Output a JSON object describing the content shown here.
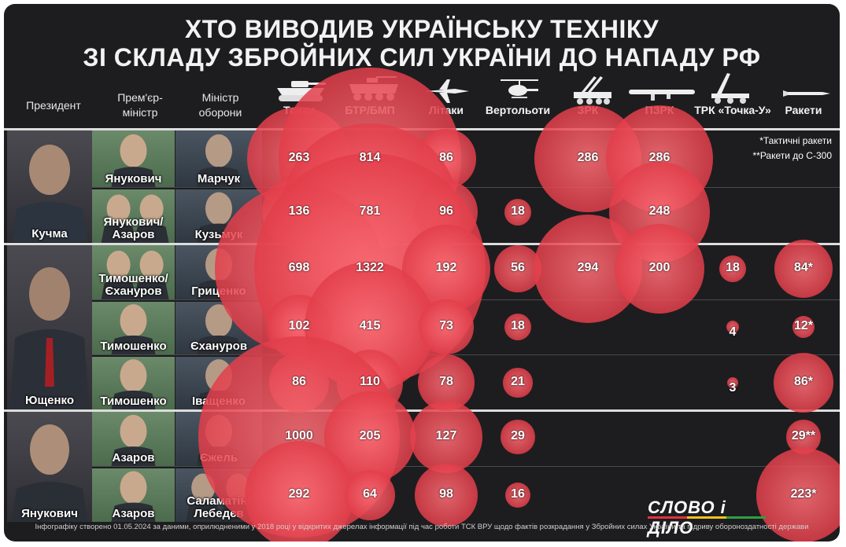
{
  "title_line1": "ХТО ВИВОДИВ УКРАЇНСЬКУ ТЕХНІКУ",
  "title_line2": "ЗІ СКЛАДУ ЗБРОЙНИХ СИЛ УКРАЇНИ ДО НАПАДУ РФ",
  "headers": {
    "president": "Президент",
    "pm_line1": "Прем'єр-",
    "pm_line2": "міністр",
    "minister_line1": "Міністр",
    "minister_line2": "оборони"
  },
  "notes": {
    "line1": "*Тактичні ракети",
    "line2": "**Ракети до С-300"
  },
  "footer": "Інфографіку створено 01.05.2024 за даними, оприлюдненими у 2018 році у відкритих джерелах інформації під час роботи ТСК ВРУ щодо фактів розкрадання у Збройних силах України та підриву обороноздатності держави",
  "logo": "СЛОВО і ДІЛО",
  "accent_color": "#e23e4a",
  "icons": [
    "tank-icon",
    "apc-icon",
    "jet-icon",
    "helicopter-icon",
    "sam-icon",
    "manpads-icon",
    "tochka-icon",
    "missile-icon"
  ],
  "presidents": [
    {
      "name": "Кучма"
    },
    {
      "name": "Ющенко"
    },
    {
      "name": "Янукович"
    }
  ],
  "rows": [
    {
      "pm_l1": "Янукович",
      "pm_l2": "",
      "min_l1": "Марчук",
      "min_l2": ""
    },
    {
      "pm_l1": "Янукович/",
      "pm_l2": "Азаров",
      "min_l1": "Кузьмук",
      "min_l2": ""
    },
    {
      "pm_l1": "Тимошенко/",
      "pm_l2": "Єхануров",
      "min_l1": "Гриценко",
      "min_l2": ""
    },
    {
      "pm_l1": "Тимошенко",
      "pm_l2": "",
      "min_l1": "Єхануров",
      "min_l2": ""
    },
    {
      "pm_l1": "Тимошенко",
      "pm_l2": "",
      "min_l1": "Іващенко",
      "min_l2": ""
    },
    {
      "pm_l1": "Азаров",
      "pm_l2": "",
      "min_l1": "Єжель",
      "min_l2": ""
    },
    {
      "pm_l1": "Азаров",
      "pm_l2": "",
      "min_l1": "Саламатін/",
      "min_l2": "Лебедєв"
    }
  ],
  "chart_data": {
    "type": "table",
    "title": "ХТО ВИВОДИВ УКРАЇНСЬКУ ТЕХНІКУ ЗІ СКЛАДУ ЗБРОЙНИХ СИЛ УКРАЇНИ ДО НАПАДУ РФ",
    "categories": [
      "Танки",
      "БТР/БМП",
      "Літаки",
      "Вертольоти",
      "ЗРК",
      "ПЗРК",
      "ТРК «Точка-У»",
      "Ракети"
    ],
    "rows": [
      {
        "president": "Кучма",
        "pm": "Янукович",
        "minister": "Марчук",
        "values": [
          263,
          814,
          86,
          null,
          286,
          286,
          null,
          null
        ],
        "labels": [
          "263",
          "814",
          "86",
          "",
          "286",
          "286",
          "",
          ""
        ]
      },
      {
        "president": "Кучма",
        "pm": "Янукович/Азаров",
        "minister": "Кузьмук",
        "values": [
          136,
          781,
          96,
          18,
          null,
          248,
          null,
          null
        ],
        "labels": [
          "136",
          "781",
          "96",
          "18",
          "",
          "248",
          "",
          ""
        ]
      },
      {
        "president": "Ющенко",
        "pm": "Тимошенко/Єхануров",
        "minister": "Гриценко",
        "values": [
          698,
          1322,
          192,
          56,
          294,
          200,
          18,
          84
        ],
        "labels": [
          "698",
          "1322",
          "192",
          "56",
          "294",
          "200",
          "18",
          "84*"
        ]
      },
      {
        "president": "Ющенко",
        "pm": "Тимошенко",
        "minister": "Єхануров",
        "values": [
          102,
          415,
          73,
          18,
          null,
          null,
          4,
          12
        ],
        "labels": [
          "102",
          "415",
          "73",
          "18",
          "",
          "",
          "4",
          "12*"
        ]
      },
      {
        "president": "Ющенко",
        "pm": "Тимошенко",
        "minister": "Іващенко",
        "values": [
          86,
          110,
          78,
          21,
          null,
          null,
          3,
          86
        ],
        "labels": [
          "86",
          "110",
          "78",
          "21",
          "",
          "",
          "3",
          "86*"
        ]
      },
      {
        "president": "Янукович",
        "pm": "Азаров",
        "minister": "Єжель",
        "values": [
          1000,
          205,
          127,
          29,
          null,
          null,
          null,
          29
        ],
        "labels": [
          "1000",
          "205",
          "127",
          "29",
          "",
          "",
          "",
          "29**"
        ]
      },
      {
        "president": "Янукович",
        "pm": "Азаров",
        "minister": "Саламатін/Лебедєв",
        "values": [
          292,
          64,
          98,
          16,
          null,
          null,
          null,
          223
        ],
        "labels": [
          "292",
          "64",
          "98",
          "16",
          "",
          "",
          "",
          "223*"
        ]
      }
    ]
  }
}
